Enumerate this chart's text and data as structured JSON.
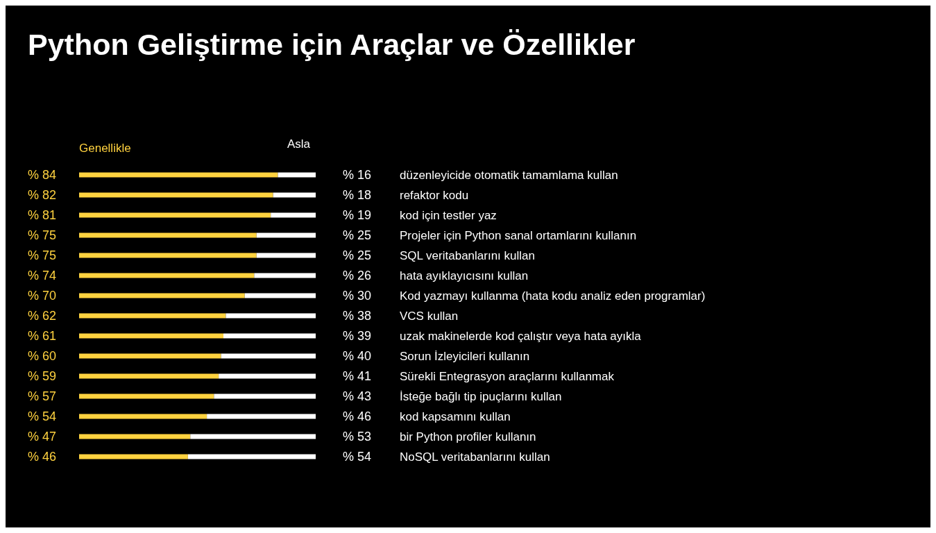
{
  "chart_data": {
    "type": "bar",
    "orientation": "horizontal",
    "stacked": true,
    "title": "Python Geliştirme için Araçlar ve Özellikler",
    "categories": [
      "düzenleyicide otomatik tamamlama kullan",
      "refaktor kodu",
      "kod için testler yaz",
      "Projeler için Python sanal ortamlarını kullanın",
      "SQL veritabanlarını kullan",
      "hata ayıklayıcısını kullan",
      "Kod yazmayı kullanma (hata kodu analiz eden programlar)",
      "VCS kullan",
      "uzak makinelerde kod çalıştır veya hata ayıkla",
      "Sorun İzleyicileri kullanın",
      "Sürekli Entegrasyon araçlarını kullanmak",
      "İsteğe bağlı tip ipuçlarını kullan",
      "kod kapsamını kullan",
      "bir Python profiler kullanın",
      "NoSQL veritabanlarını kullan"
    ],
    "series": [
      {
        "name": "Genellikle",
        "color": "#ffd23f",
        "values": [
          84,
          82,
          81,
          75,
          75,
          74,
          70,
          62,
          61,
          60,
          59,
          57,
          54,
          47,
          46
        ],
        "value_labels": [
          "% 84",
          "% 82",
          "% 81",
          "% 75",
          "% 75",
          "% 74",
          "% 70",
          "% 62",
          "% 61",
          "% 60",
          "% 59",
          "% 57",
          "% 54",
          "% 47",
          "% 46"
        ]
      },
      {
        "name": "Asla",
        "color": "#ffffff",
        "values": [
          16,
          18,
          19,
          25,
          25,
          26,
          30,
          38,
          39,
          40,
          41,
          43,
          46,
          53,
          54
        ],
        "value_labels": [
          "% 16",
          "% 18",
          "% 19",
          "% 25",
          "% 25",
          "% 26",
          "% 30",
          "% 38",
          "% 39",
          "% 40",
          "% 41",
          "% 43",
          "% 46",
          "% 53",
          "% 54"
        ]
      }
    ],
    "xlim": [
      0,
      100
    ],
    "tick_labels": "y",
    "legend": "top"
  }
}
